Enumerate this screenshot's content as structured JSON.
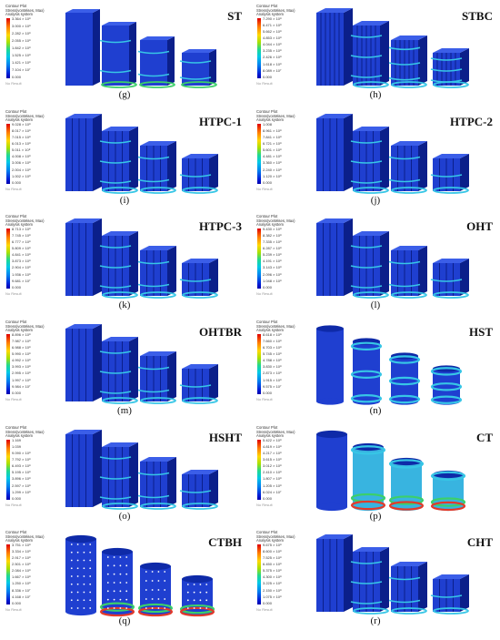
{
  "legend_common": {
    "line1": "Contour Plot",
    "line2": "Stress(vonMises, Max)",
    "line3": "Analysis system",
    "no_result": "No Result"
  },
  "panels": [
    {
      "title": "ST",
      "label": "(g)",
      "values": [
        "3.364 × 10⁸",
        "3.000 × 10⁸",
        "2.282 × 10⁸",
        "2.055 × 10⁸",
        "1.842 × 10⁸",
        "1.525 × 10⁸",
        "1.421 × 10⁸",
        "7.104 × 10⁷",
        "0.000"
      ]
    },
    {
      "title": "STBC",
      "label": "(h)",
      "values": [
        "7.290 × 10⁸",
        "6.471 × 10⁸",
        "5.662 × 10⁸",
        "4.853 × 10⁸",
        "4.044 × 10⁸",
        "3.235 × 10⁸",
        "2.426 × 10⁸",
        "1.618 × 10⁸",
        "8.089 × 10⁷",
        "0.000"
      ]
    },
    {
      "title": "HTPC-1",
      "label": "(i)",
      "values": [
        "9.028 × 10⁸",
        "8.017 × 10⁸",
        "7.015 × 10⁸",
        "6.013 × 10⁸",
        "5.011 × 10⁸",
        "4.008 × 10⁸",
        "3.006 × 10⁸",
        "2.004 × 10⁸",
        "1.002 × 10⁸",
        "0.000"
      ]
    },
    {
      "title": "HTPC-2",
      "label": "(j)",
      "values": [
        "1.008",
        "8.961 × 10⁸",
        "7.841 × 10⁸",
        "6.721 × 10⁸",
        "5.601 × 10⁸",
        "4.481 × 10⁸",
        "3.360 × 10⁸",
        "2.240 × 10⁸",
        "1.120 × 10⁸",
        "0.000"
      ]
    },
    {
      "title": "HTPC-3",
      "label": "(k)",
      "values": [
        "8.713 × 10⁸",
        "7.745 × 10⁸",
        "6.777 × 10⁸",
        "5.809 × 10⁸",
        "4.841 × 10⁸",
        "3.873 × 10⁸",
        "2.904 × 10⁸",
        "1.936 × 10⁸",
        "9.681 × 10⁷",
        "0.000"
      ]
    },
    {
      "title": "OHT",
      "label": "(l)",
      "values": [
        "9.430 × 10⁸",
        "8.382 × 10⁸",
        "7.335 × 10⁸",
        "6.287 × 10⁸",
        "5.239 × 10⁸",
        "4.191 × 10⁸",
        "3.143 × 10⁸",
        "2.096 × 10⁸",
        "1.048 × 10⁸",
        "0.000"
      ]
    },
    {
      "title": "OHTBR",
      "label": "(m)",
      "values": [
        "8.896 × 10⁸",
        "7.987 × 10⁸",
        "6.988 × 10⁸",
        "5.990 × 10⁸",
        "4.992 × 10⁸",
        "3.993 × 10⁸",
        "2.995 × 10⁸",
        "1.997 × 10⁸",
        "9.984 × 10⁷",
        "0.000"
      ]
    },
    {
      "title": "HST",
      "label": "(n)",
      "values": [
        "8.618 × 10⁸",
        "7.660 × 10⁸",
        "6.703 × 10⁸",
        "5.745 × 10⁸",
        "4.788 × 10⁸",
        "3.830 × 10⁸",
        "2.873 × 10⁸",
        "1.915 × 10⁸",
        "9.575 × 10⁷",
        "0.000"
      ]
    },
    {
      "title": "HSHT",
      "label": "(o)",
      "values": [
        "1.169",
        "1.039",
        "9.090 × 10⁸",
        "7.792 × 10⁸",
        "6.493 × 10⁸",
        "5.195 × 10⁸",
        "3.896 × 10⁸",
        "2.597 × 10⁸",
        "1.299 × 10⁸",
        "0.000"
      ]
    },
    {
      "title": "CT",
      "label": "(p)",
      "values": [
        "5.422 × 10⁸",
        "4.819 × 10⁸",
        "4.217 × 10⁸",
        "3.615 × 10⁸",
        "3.012 × 10⁸",
        "2.410 × 10⁸",
        "1.807 × 10⁸",
        "1.205 × 10⁸",
        "6.024 × 10⁷",
        "0.000"
      ]
    },
    {
      "title": "CTBH",
      "label": "(q)",
      "values": [
        "3.751 × 10⁸",
        "3.334 × 10⁸",
        "2.917 × 10⁸",
        "2.501 × 10⁸",
        "2.084 × 10⁸",
        "1.667 × 10⁸",
        "1.250 × 10⁸",
        "8.336 × 10⁷",
        "4.168 × 10⁷",
        "0.000"
      ]
    },
    {
      "title": "CHT",
      "label": "(r)",
      "values": [
        "9.675 × 10⁸",
        "8.600 × 10⁸",
        "7.525 × 10⁸",
        "6.450 × 10⁸",
        "5.375 × 10⁸",
        "4.300 × 10⁸",
        "3.225 × 10⁸",
        "2.150 × 10⁸",
        "1.075 × 10⁸",
        "0.000"
      ]
    }
  ],
  "colors": {
    "structure_blue": "#1f3fd0",
    "structure_dark": "#0b1f8a",
    "highlight_cyan": "#37c6e6",
    "highlight_green": "#3ccf6a",
    "highlight_red": "#e33a2a"
  }
}
